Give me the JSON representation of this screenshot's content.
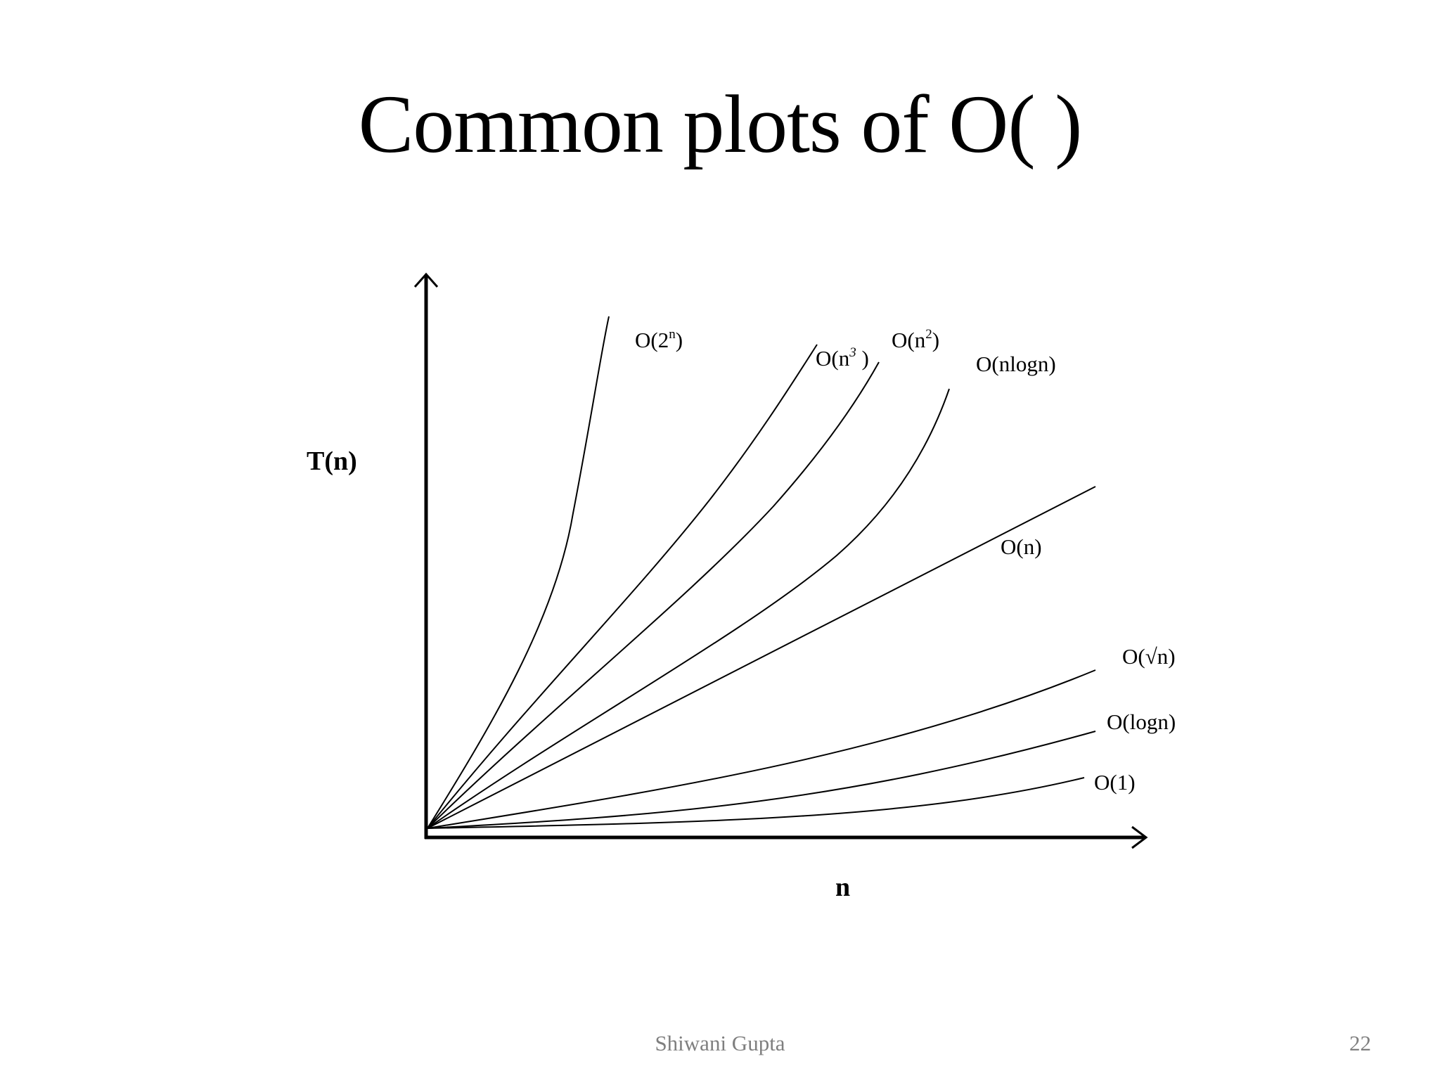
{
  "slide": {
    "title": "Common plots of O( )",
    "author": "Shiwani Gupta",
    "page_number": "22"
  },
  "chart_data": {
    "type": "line",
    "title": "",
    "xlabel": "n",
    "ylabel": "T(n)",
    "ticks": "none",
    "grid": false,
    "legend": "curve-end labels",
    "series": [
      {
        "name": "O(2n)",
        "label_main": "O(2",
        "label_sup": "n",
        "label_tail": ")",
        "shape": "exponential, steepest"
      },
      {
        "name": "O(n3 )",
        "label_main": "O(n",
        "label_sup": "3",
        "label_tail": " )",
        "shape": "cubic"
      },
      {
        "name": "O(n2)",
        "label_main": "O(n",
        "label_sup": "2",
        "label_tail": ")",
        "shape": "quadratic"
      },
      {
        "name": "O(nlogn)",
        "label_main": "O(nlogn)",
        "label_sup": "",
        "label_tail": "",
        "shape": "linearithmic"
      },
      {
        "name": "O(n)",
        "label_main": "O(n)",
        "label_sup": "",
        "label_tail": "",
        "shape": "linear"
      },
      {
        "name": "O(√n)",
        "label_main": "O(√n)",
        "label_sup": "",
        "label_tail": "",
        "shape": "square root"
      },
      {
        "name": "O(logn)",
        "label_main": "O(logn)",
        "label_sup": "",
        "label_tail": "",
        "shape": "logarithmic"
      },
      {
        "name": "O(1)",
        "label_main": "O(1)",
        "label_sup": "",
        "label_tail": "",
        "shape": "constant, lowest"
      }
    ]
  }
}
